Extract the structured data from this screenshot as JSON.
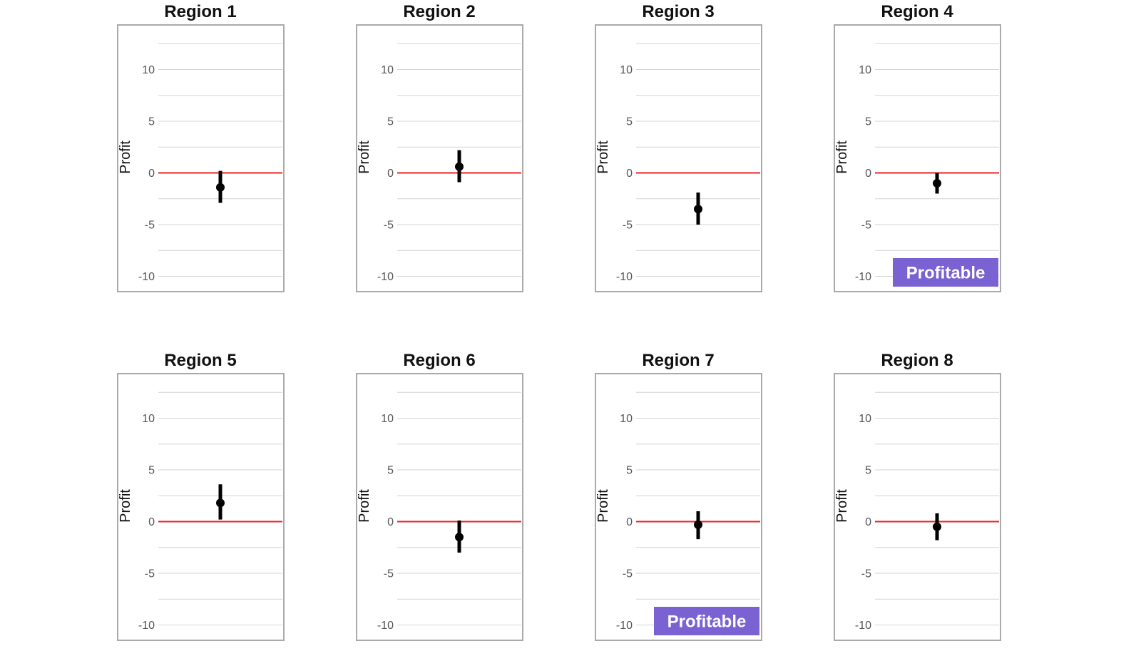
{
  "chart_data": {
    "type": "errorbar",
    "ylabel": "Profit",
    "yticks": [
      -10,
      -5,
      0,
      5,
      10
    ],
    "ylim": [
      -11.5,
      12.5
    ],
    "reference_line": {
      "y": 0,
      "color": "#ee2222"
    },
    "grid": true,
    "colors": {
      "point": "#000000",
      "badge": "#7b62d2",
      "frame": "#aaaaaa",
      "grid": "#d3d3d3"
    },
    "panels": [
      {
        "title": "Region 1",
        "estimate": -1.4,
        "lower": -2.9,
        "upper": 0.2,
        "badge": ""
      },
      {
        "title": "Region 2",
        "estimate": 0.6,
        "lower": -0.9,
        "upper": 2.2,
        "badge": ""
      },
      {
        "title": "Region 3",
        "estimate": -3.5,
        "lower": -5.0,
        "upper": -1.9,
        "badge": ""
      },
      {
        "title": "Region 4",
        "estimate": -1.0,
        "lower": -2.0,
        "upper": 0.0,
        "badge": "Profitable"
      },
      {
        "title": "Region 5",
        "estimate": 1.8,
        "lower": 0.2,
        "upper": 3.6,
        "badge": ""
      },
      {
        "title": "Region 6",
        "estimate": -1.5,
        "lower": -3.0,
        "upper": 0.1,
        "badge": ""
      },
      {
        "title": "Region 7",
        "estimate": -0.3,
        "lower": -1.7,
        "upper": 1.0,
        "badge": "Profitable"
      },
      {
        "title": "Region 8",
        "estimate": -0.5,
        "lower": -1.8,
        "upper": 0.8,
        "badge": ""
      }
    ]
  }
}
